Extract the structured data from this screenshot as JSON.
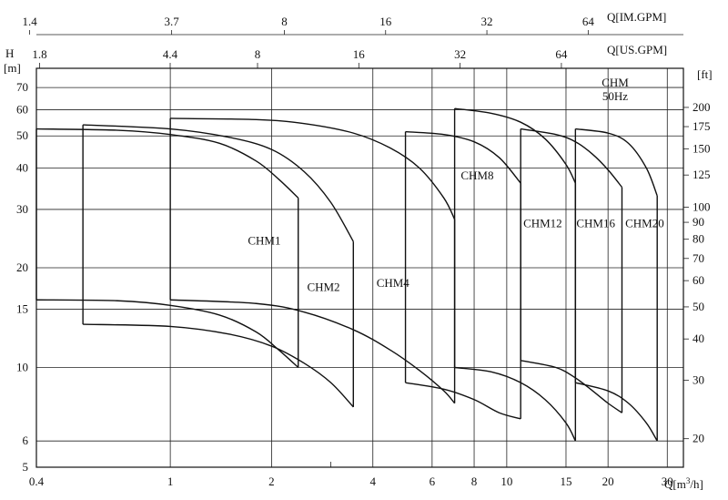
{
  "chart_data": {
    "type": "line",
    "title": "",
    "x_scale": "log",
    "y_scale": "log",
    "xlabel_prefix": "Q[m",
    "xlabel_sup": "3",
    "xlabel_suffix": "/h]",
    "xlim": [
      0.4,
      33.5
    ],
    "x_ticks": [
      {
        "value": 0.4,
        "label": "0.4"
      },
      {
        "value": 1,
        "label": "1"
      },
      {
        "value": 2,
        "label": "2"
      },
      {
        "value": 3,
        "label": ""
      },
      {
        "value": 4,
        "label": "4"
      },
      {
        "value": 6,
        "label": "6"
      },
      {
        "value": 8,
        "label": "8"
      },
      {
        "value": 10,
        "label": "10"
      },
      {
        "value": 15,
        "label": "15"
      },
      {
        "value": 20,
        "label": "20"
      },
      {
        "value": 30,
        "label": "30"
      }
    ],
    "ylabel_left_top": "H",
    "ylabel_left_unit": "[m]",
    "ylim": [
      5,
      80
    ],
    "y_ticks_left": [
      {
        "value": 5,
        "label": "5"
      },
      {
        "value": 6,
        "label": "6"
      },
      {
        "value": 10,
        "label": "10"
      },
      {
        "value": 15,
        "label": "15"
      },
      {
        "value": 20,
        "label": "20"
      },
      {
        "value": 30,
        "label": "30"
      },
      {
        "value": 40,
        "label": "40"
      },
      {
        "value": 50,
        "label": "50"
      },
      {
        "value": 60,
        "label": "60"
      },
      {
        "value": 70,
        "label": "70"
      }
    ],
    "ylabel_right_unit": "[ft]",
    "y_ticks_right": [
      {
        "value": 20,
        "label": "20"
      },
      {
        "value": 30,
        "label": "30"
      },
      {
        "value": 40,
        "label": "40"
      },
      {
        "value": 50,
        "label": "50"
      },
      {
        "value": 60,
        "label": "60"
      },
      {
        "value": 70,
        "label": "70"
      },
      {
        "value": 80,
        "label": "80"
      },
      {
        "value": 90,
        "label": "90"
      },
      {
        "value": 100,
        "label": "100"
      },
      {
        "value": 125,
        "label": "125"
      },
      {
        "value": 150,
        "label": "150"
      },
      {
        "value": 175,
        "label": "175"
      },
      {
        "value": 200,
        "label": "200"
      }
    ],
    "top_axis_us": {
      "label": "Q[US.GPM]",
      "ticks": [
        {
          "value": 1.8,
          "label": "1.8"
        },
        {
          "value": 4.4,
          "label": "4.4"
        },
        {
          "value": 8,
          "label": "8"
        },
        {
          "value": 16,
          "label": "16"
        },
        {
          "value": 32,
          "label": "32"
        },
        {
          "value": 64,
          "label": "64"
        }
      ]
    },
    "top_axis_im": {
      "label": "Q[IM.GPM]",
      "ticks": [
        {
          "value": 1.4,
          "label": "1.4"
        },
        {
          "value": 3.7,
          "label": "3.7"
        },
        {
          "value": 8,
          "label": "8"
        },
        {
          "value": 16,
          "label": "16"
        },
        {
          "value": 32,
          "label": "32"
        },
        {
          "value": 64,
          "label": "64"
        }
      ]
    },
    "legend_box": {
      "line1": "CHM",
      "line2": "50Hz"
    },
    "series": [
      {
        "name": "CHM1",
        "label_at": [
          1.7,
          23.5
        ],
        "x": [
          0.4,
          0.7,
          1.0,
          1.4,
          1.8,
          2.1,
          2.4
        ],
        "upper": [
          52.5,
          52.0,
          50.5,
          47.5,
          42.0,
          37.0,
          32.5
        ],
        "lower": [
          16.0,
          15.9,
          15.4,
          14.4,
          12.8,
          11.3,
          10.0
        ]
      },
      {
        "name": "CHM2",
        "label_at": [
          2.55,
          17.0
        ],
        "x": [
          0.55,
          1.0,
          1.5,
          2.0,
          2.5,
          3.0,
          3.5
        ],
        "upper": [
          54.0,
          52.5,
          49.5,
          45.5,
          39.0,
          31.5,
          24.0
        ],
        "lower": [
          13.5,
          13.3,
          12.6,
          11.6,
          10.3,
          9.0,
          7.6
        ]
      },
      {
        "name": "CHM4",
        "label_at": [
          4.1,
          17.5
        ],
        "x": [
          1.0,
          1.8,
          2.5,
          3.5,
          4.5,
          5.5,
          6.5,
          7.0
        ],
        "upper": [
          56.5,
          56.0,
          54.5,
          51.0,
          46.0,
          40.0,
          32.5,
          28.0
        ],
        "lower": [
          16.0,
          15.6,
          14.7,
          13.0,
          11.3,
          9.8,
          8.5,
          7.8
        ]
      },
      {
        "name": "CHM8",
        "label_at": [
          7.3,
          37.0
        ],
        "x": [
          5.0,
          6.5,
          8.0,
          9.5,
          11.0
        ],
        "upper": [
          51.5,
          50.5,
          48.0,
          43.0,
          36.0
        ],
        "lower": [
          9.0,
          8.6,
          8.0,
          7.3,
          7.0
        ]
      },
      {
        "name": "CHM12",
        "label_at": [
          11.2,
          26.5
        ],
        "x": [
          7.0,
          9.0,
          11.0,
          13.0,
          15.0,
          16.0
        ],
        "upper": [
          60.5,
          58.5,
          55.0,
          49.0,
          41.0,
          36.0
        ],
        "lower": [
          10.0,
          9.7,
          9.0,
          8.0,
          6.8,
          6.0
        ]
      },
      {
        "name": "CHM16",
        "label_at": [
          16.1,
          26.5
        ],
        "x": [
          11.0,
          14.0,
          16.0,
          18.0,
          20.0,
          22.0
        ],
        "upper": [
          52.5,
          50.5,
          48.0,
          44.0,
          39.5,
          35.0
        ],
        "lower": [
          10.5,
          10.0,
          9.3,
          8.5,
          7.8,
          7.3
        ]
      },
      {
        "name": "CHM20",
        "label_at": [
          22.5,
          26.5
        ],
        "x": [
          16.0,
          20.0,
          23.0,
          26.0,
          28.0
        ],
        "upper": [
          52.5,
          51.0,
          47.5,
          40.0,
          33.0
        ],
        "lower": [
          9.0,
          8.5,
          7.8,
          6.8,
          6.0
        ]
      }
    ]
  }
}
